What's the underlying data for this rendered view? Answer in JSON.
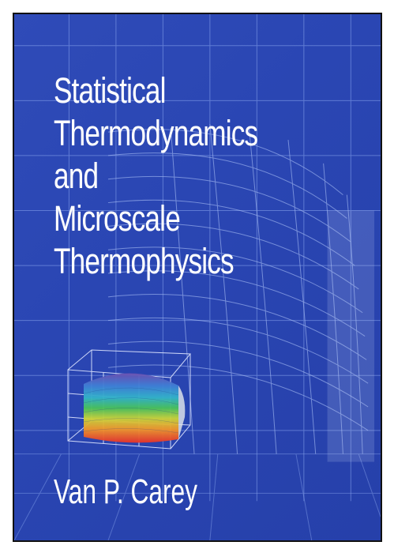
{
  "book": {
    "title_lines": [
      "Statistical",
      "Thermodynamics",
      "and",
      "Microscale",
      "Thermophysics"
    ],
    "author": "Van P. Carey",
    "colors": {
      "background": "#2a46b3",
      "text": "#ffffff",
      "grid": "#7f9be5"
    },
    "illustration_icon": "3d-surface-plot-icon"
  }
}
